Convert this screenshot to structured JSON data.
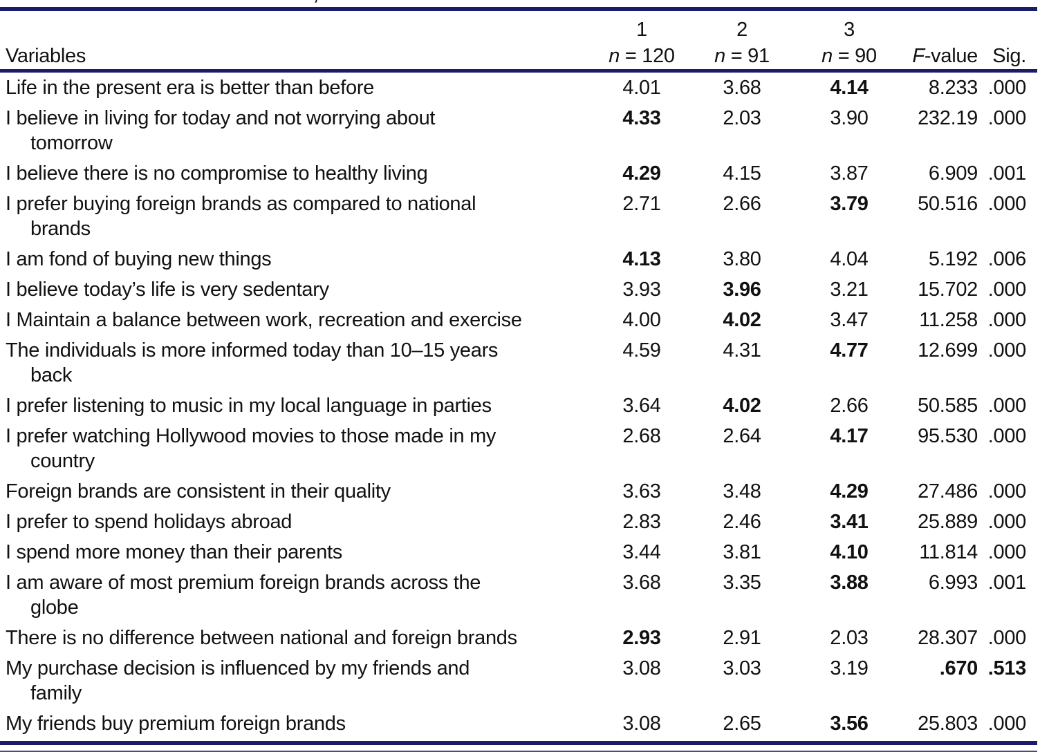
{
  "page": {
    "background": "#ffffff",
    "rule_color": "#1b1b6b",
    "text_color": "#111111",
    "caption_fragment": ","
  },
  "header": {
    "variables_label": "Variables",
    "groups": [
      {
        "number": "1",
        "n_italic": "n",
        "eq": " = ",
        "count": "120"
      },
      {
        "number": "2",
        "n_italic": "n",
        "eq": " = ",
        "count": "91"
      },
      {
        "number": "3",
        "n_italic": "n",
        "eq": " = ",
        "count": "90"
      }
    ],
    "f_italic": "F",
    "f_rest": "-value",
    "sig_label": "Sig."
  },
  "rows": [
    {
      "lines": [
        "Life in the present era is better than before"
      ],
      "values": [
        "4.01",
        "3.68",
        "4.14",
        "8.233",
        ".000"
      ],
      "bold": [
        false,
        false,
        true,
        false,
        false
      ]
    },
    {
      "lines": [
        "I believe in living for today and not worrying about",
        "tomorrow"
      ],
      "values": [
        "4.33",
        "2.03",
        "3.90",
        "232.19",
        ".000"
      ],
      "bold": [
        true,
        false,
        false,
        false,
        false
      ]
    },
    {
      "lines": [
        "I believe there is no compromise to healthy living"
      ],
      "values": [
        "4.29",
        "4.15",
        "3.87",
        "6.909",
        ".001"
      ],
      "bold": [
        true,
        false,
        false,
        false,
        false
      ]
    },
    {
      "lines": [
        "I prefer buying foreign brands as compared to national",
        "brands"
      ],
      "values": [
        "2.71",
        "2.66",
        "3.79",
        "50.516",
        ".000"
      ],
      "bold": [
        false,
        false,
        true,
        false,
        false
      ]
    },
    {
      "lines": [
        "I am fond of buying new things"
      ],
      "values": [
        "4.13",
        "3.80",
        "4.04",
        "5.192",
        ".006"
      ],
      "bold": [
        true,
        false,
        false,
        false,
        false
      ]
    },
    {
      "lines": [
        "I believe today’s life is very sedentary"
      ],
      "values": [
        "3.93",
        "3.96",
        "3.21",
        "15.702",
        ".000"
      ],
      "bold": [
        false,
        true,
        false,
        false,
        false
      ]
    },
    {
      "lines": [
        "I Maintain a balance between work, recreation and exercise"
      ],
      "values": [
        "4.00",
        "4.02",
        "3.47",
        "11.258",
        ".000"
      ],
      "bold": [
        false,
        true,
        false,
        false,
        false
      ]
    },
    {
      "lines": [
        "The individuals is more informed today than 10–15 years",
        "back"
      ],
      "values": [
        "4.59",
        "4.31",
        "4.77",
        "12.699",
        ".000"
      ],
      "bold": [
        false,
        false,
        true,
        false,
        false
      ]
    },
    {
      "lines": [
        "I prefer listening to music in my local language in parties"
      ],
      "values": [
        "3.64",
        "4.02",
        "2.66",
        "50.585",
        ".000"
      ],
      "bold": [
        false,
        true,
        false,
        false,
        false
      ]
    },
    {
      "lines": [
        "I prefer watching Hollywood movies to those made in my",
        "country"
      ],
      "values": [
        "2.68",
        "2.64",
        "4.17",
        "95.530",
        ".000"
      ],
      "bold": [
        false,
        false,
        true,
        false,
        false
      ]
    },
    {
      "lines": [
        "Foreign brands are consistent in their quality"
      ],
      "values": [
        "3.63",
        "3.48",
        "4.29",
        "27.486",
        ".000"
      ],
      "bold": [
        false,
        false,
        true,
        false,
        false
      ]
    },
    {
      "lines": [
        "I prefer to spend holidays abroad"
      ],
      "values": [
        "2.83",
        "2.46",
        "3.41",
        "25.889",
        ".000"
      ],
      "bold": [
        false,
        false,
        true,
        false,
        false
      ]
    },
    {
      "lines": [
        "I spend more money than their parents"
      ],
      "values": [
        "3.44",
        "3.81",
        "4.10",
        "11.814",
        ".000"
      ],
      "bold": [
        false,
        false,
        true,
        false,
        false
      ]
    },
    {
      "lines": [
        "I am aware of most premium foreign brands across the",
        "globe"
      ],
      "values": [
        "3.68",
        "3.35",
        "3.88",
        "6.993",
        ".001"
      ],
      "bold": [
        false,
        false,
        true,
        false,
        false
      ]
    },
    {
      "lines": [
        "There is no difference between national and foreign brands"
      ],
      "values": [
        "2.93",
        "2.91",
        "2.03",
        "28.307",
        ".000"
      ],
      "bold": [
        true,
        false,
        false,
        false,
        false
      ]
    },
    {
      "lines": [
        "My purchase decision is influenced by my friends and",
        "family"
      ],
      "values": [
        "3.08",
        "3.03",
        "3.19",
        ".670",
        ".513"
      ],
      "bold": [
        false,
        false,
        false,
        true,
        true
      ]
    },
    {
      "lines": [
        "My friends buy premium foreign brands"
      ],
      "values": [
        "3.08",
        "2.65",
        "3.56",
        "25.803",
        ".000"
      ],
      "bold": [
        false,
        false,
        true,
        false,
        false
      ]
    }
  ]
}
